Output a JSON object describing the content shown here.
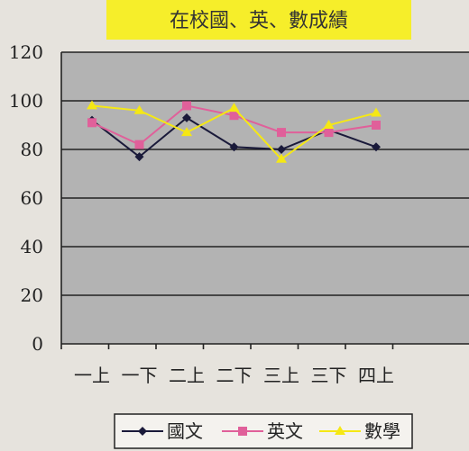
{
  "chart_data": {
    "type": "line",
    "title": "在校國、英、數成績",
    "categories": [
      "一上",
      "一下",
      "二上",
      "二下",
      "三上",
      "三下",
      "四上"
    ],
    "ylim": [
      0,
      120
    ],
    "yticks": [
      "0",
      "20",
      "40",
      "60",
      "80",
      "100",
      "120"
    ],
    "grid": true,
    "legend_position": "bottom",
    "series": [
      {
        "name": "國文",
        "color": "#1a1a3a",
        "marker": "diamond",
        "values": [
          92,
          77,
          93,
          81,
          80,
          88,
          81
        ]
      },
      {
        "name": "英文",
        "color": "#e0609a",
        "marker": "square",
        "values": [
          91,
          82,
          98,
          94,
          87,
          87,
          90
        ]
      },
      {
        "name": "數學",
        "color": "#f5e814",
        "marker": "triangle",
        "values": [
          98,
          96,
          87,
          97,
          76,
          90,
          95
        ]
      }
    ]
  }
}
